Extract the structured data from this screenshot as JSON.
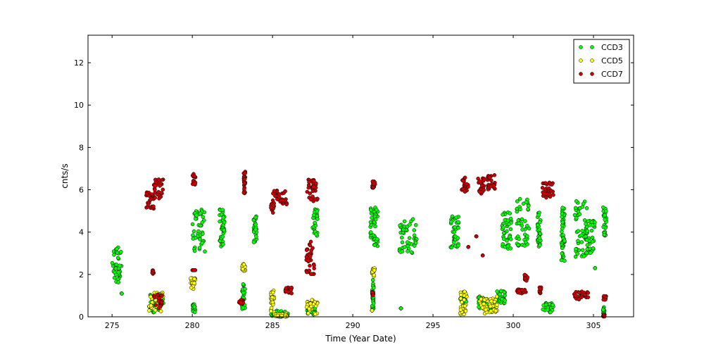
{
  "chart_data": {
    "type": "scatter",
    "xlabel": "Time (Year Date)",
    "ylabel": "cnts/s",
    "xlim": [
      273.5,
      307.5
    ],
    "ylim": [
      0,
      13.3
    ],
    "xticks": [
      275,
      280,
      285,
      290,
      295,
      300,
      305
    ],
    "yticks": [
      0,
      2,
      4,
      6,
      8,
      10,
      12
    ],
    "grid": false,
    "legend_position": "top-right",
    "series": [
      {
        "name": "CCD3",
        "color": "#00ff00",
        "clusters": [
          {
            "x": [
              275.0,
              275.6
            ],
            "y": [
              1.6,
              3.3
            ]
          },
          {
            "x": [
              275.6,
              275.6
            ],
            "y": [
              1.1,
              1.1
            ]
          },
          {
            "x": [
              277.3,
              278.2
            ],
            "y": [
              0.2,
              1.1
            ]
          },
          {
            "x": [
              280.0,
              280.2
            ],
            "y": [
              0.2,
              0.6
            ]
          },
          {
            "x": [
              280.0,
              280.8
            ],
            "y": [
              3.0,
              5.1
            ]
          },
          {
            "x": [
              281.7,
              282.0
            ],
            "y": [
              3.3,
              5.1
            ]
          },
          {
            "x": [
              283.1,
              283.3
            ],
            "y": [
              0.3,
              1.6
            ]
          },
          {
            "x": [
              283.8,
              284.0
            ],
            "y": [
              3.5,
              4.8
            ]
          },
          {
            "x": [
              284.9,
              286.0
            ],
            "y": [
              0.0,
              0.3
            ]
          },
          {
            "x": [
              287.1,
              287.7
            ],
            "y": [
              0.1,
              0.4
            ]
          },
          {
            "x": [
              287.5,
              287.8
            ],
            "y": [
              3.8,
              5.1
            ]
          },
          {
            "x": [
              291.2,
              291.3
            ],
            "y": [
              0.3,
              1.8
            ]
          },
          {
            "x": [
              291.1,
              291.6
            ],
            "y": [
              3.3,
              5.3
            ]
          },
          {
            "x": [
              292.9,
              294.0
            ],
            "y": [
              3.0,
              4.7
            ]
          },
          {
            "x": [
              293.0,
              293.0
            ],
            "y": [
              0.4,
              0.4
            ]
          },
          {
            "x": [
              296.1,
              296.6
            ],
            "y": [
              3.2,
              4.8
            ]
          },
          {
            "x": [
              296.7,
              297.1
            ],
            "y": [
              0.5,
              1.1
            ]
          },
          {
            "x": [
              297.8,
              298.3
            ],
            "y": [
              0.4,
              1.0
            ]
          },
          {
            "x": [
              298.4,
              298.8
            ],
            "y": [
              0.2,
              0.6
            ]
          },
          {
            "x": [
              298.9,
              299.5
            ],
            "y": [
              0.6,
              1.3
            ]
          },
          {
            "x": [
              299.3,
              299.9
            ],
            "y": [
              3.2,
              5.0
            ]
          },
          {
            "x": [
              300.2,
              301.0
            ],
            "y": [
              3.3,
              5.6
            ]
          },
          {
            "x": [
              301.5,
              301.7
            ],
            "y": [
              3.3,
              5.0
            ]
          },
          {
            "x": [
              301.8,
              302.5
            ],
            "y": [
              0.2,
              0.7
            ]
          },
          {
            "x": [
              303.0,
              303.2
            ],
            "y": [
              2.6,
              5.4
            ]
          },
          {
            "x": [
              303.8,
              304.6
            ],
            "y": [
              2.8,
              5.5
            ]
          },
          {
            "x": [
              304.5,
              305.1
            ],
            "y": [
              3.0,
              4.6
            ]
          },
          {
            "x": [
              305.1,
              305.1
            ],
            "y": [
              2.3,
              2.3
            ]
          },
          {
            "x": [
              305.6,
              305.8
            ],
            "y": [
              3.8,
              5.2
            ]
          },
          {
            "x": [
              305.6,
              305.7
            ],
            "y": [
              0.1,
              0.5
            ]
          }
        ]
      },
      {
        "name": "CCD5",
        "color": "#ffff00",
        "clusters": [
          {
            "x": [
              277.3,
              278.2
            ],
            "y": [
              0.2,
              1.2
            ]
          },
          {
            "x": [
              279.9,
              280.2
            ],
            "y": [
              1.3,
              1.9
            ]
          },
          {
            "x": [
              283.1,
              283.3
            ],
            "y": [
              2.1,
              2.5
            ]
          },
          {
            "x": [
              284.9,
              285.1
            ],
            "y": [
              0.1,
              1.3
            ]
          },
          {
            "x": [
              285.1,
              286.0
            ],
            "y": [
              0.0,
              0.2
            ]
          },
          {
            "x": [
              287.1,
              287.8
            ],
            "y": [
              0.1,
              0.8
            ]
          },
          {
            "x": [
              291.2,
              291.4
            ],
            "y": [
              1.9,
              2.3
            ]
          },
          {
            "x": [
              291.2,
              291.2
            ],
            "y": [
              0.3,
              0.3
            ]
          },
          {
            "x": [
              296.7,
              297.1
            ],
            "y": [
              0.1,
              1.2
            ]
          },
          {
            "x": [
              297.9,
              298.4
            ],
            "y": [
              0.1,
              0.9
            ]
          },
          {
            "x": [
              298.5,
              299.0
            ],
            "y": [
              0.2,
              1.0
            ]
          }
        ]
      },
      {
        "name": "CCD7",
        "color": "#cc0000",
        "clusters": [
          {
            "x": [
              277.1,
              277.6
            ],
            "y": [
              5.1,
              5.9
            ]
          },
          {
            "x": [
              277.6,
              278.2
            ],
            "y": [
              5.5,
              6.5
            ]
          },
          {
            "x": [
              277.5,
              277.6
            ],
            "y": [
              2.0,
              2.2
            ]
          },
          {
            "x": [
              277.6,
              278.1
            ],
            "y": [
              0.4,
              1.1
            ]
          },
          {
            "x": [
              280.0,
              280.2
            ],
            "y": [
              6.2,
              6.9
            ]
          },
          {
            "x": [
              280.0,
              280.2
            ],
            "y": [
              2.2,
              2.2
            ]
          },
          {
            "x": [
              282.9,
              283.2
            ],
            "y": [
              0.6,
              0.8
            ]
          },
          {
            "x": [
              283.2,
              283.3
            ],
            "y": [
              5.7,
              6.9
            ]
          },
          {
            "x": [
              284.9,
              285.1
            ],
            "y": [
              4.9,
              5.4
            ]
          },
          {
            "x": [
              285.0,
              285.9
            ],
            "y": [
              5.3,
              6.0
            ]
          },
          {
            "x": [
              285.8,
              286.2
            ],
            "y": [
              1.1,
              1.4
            ]
          },
          {
            "x": [
              287.1,
              287.8
            ],
            "y": [
              5.4,
              6.5
            ]
          },
          {
            "x": [
              287.1,
              287.6
            ],
            "y": [
              2.0,
              3.6
            ]
          },
          {
            "x": [
              291.2,
              291.4
            ],
            "y": [
              5.9,
              6.4
            ]
          },
          {
            "x": [
              291.2,
              291.3
            ],
            "y": [
              1.0,
              1.2
            ]
          },
          {
            "x": [
              296.7,
              297.2
            ],
            "y": [
              5.9,
              6.6
            ]
          },
          {
            "x": [
              297.8,
              298.2
            ],
            "y": [
              5.8,
              6.6
            ]
          },
          {
            "x": [
              298.4,
              298.9
            ],
            "y": [
              6.0,
              6.7
            ]
          },
          {
            "x": [
              297.2,
              297.2
            ],
            "y": [
              3.3,
              3.3
            ]
          },
          {
            "x": [
              297.7,
              297.7
            ],
            "y": [
              3.8,
              3.8
            ]
          },
          {
            "x": [
              298.1,
              298.1
            ],
            "y": [
              2.9,
              2.9
            ]
          },
          {
            "x": [
              300.2,
              300.8
            ],
            "y": [
              1.1,
              1.3
            ]
          },
          {
            "x": [
              300.7,
              300.9
            ],
            "y": [
              1.7,
              2.0
            ]
          },
          {
            "x": [
              301.6,
              301.8
            ],
            "y": [
              1.1,
              1.4
            ]
          },
          {
            "x": [
              301.8,
              302.5
            ],
            "y": [
              5.6,
              6.4
            ]
          },
          {
            "x": [
              303.8,
              304.7
            ],
            "y": [
              0.8,
              1.2
            ]
          },
          {
            "x": [
              305.6,
              305.8
            ],
            "y": [
              0.8,
              1.0
            ]
          },
          {
            "x": [
              305.6,
              305.7
            ],
            "y": [
              0.0,
              0.1
            ]
          }
        ]
      }
    ]
  }
}
